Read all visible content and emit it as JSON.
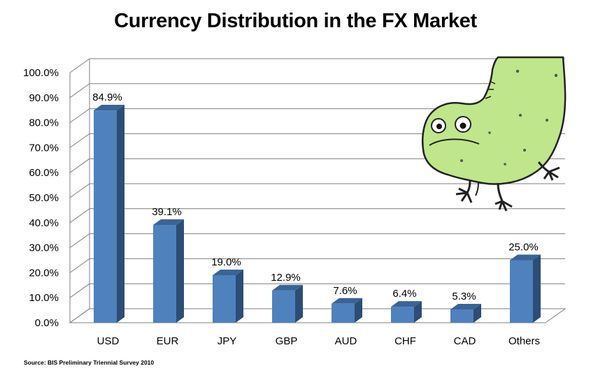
{
  "chart_data": {
    "type": "bar",
    "title": "Currency Distribution in the FX Market",
    "categories": [
      "USD",
      "EUR",
      "JPY",
      "GBP",
      "AUD",
      "CHF",
      "CAD",
      "Others"
    ],
    "values": [
      84.9,
      39.1,
      19.0,
      12.9,
      7.6,
      6.4,
      5.3,
      25.0
    ],
    "data_labels": [
      "84.9%",
      "39.1%",
      "19.0%",
      "12.9%",
      "7.6%",
      "6.4%",
      "5.3%",
      "25.0%"
    ],
    "y_ticks": [
      "0.0%",
      "10.0%",
      "20.0%",
      "30.0%",
      "40.0%",
      "50.0%",
      "60.0%",
      "70.0%",
      "80.0%",
      "90.0%",
      "100.0%"
    ],
    "xlabel": "",
    "ylabel": "",
    "ylim": [
      0,
      100
    ],
    "grid": true,
    "legend": "none",
    "bar_color": "#4f81bd",
    "bar_side_color": "#2c4d75",
    "bar_top_color": "#3a6496",
    "source": "Source: BIS Preliminary Triennial Survey  2010"
  },
  "decoration": {
    "icon": "green-monster-icon",
    "fill": "#bfe68a"
  }
}
